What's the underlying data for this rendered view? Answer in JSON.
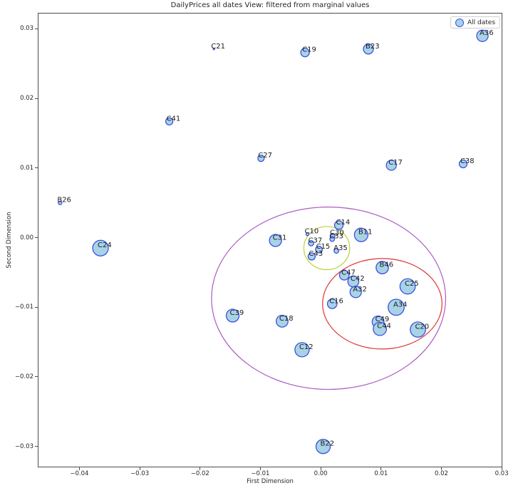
{
  "chart_data": {
    "type": "scatter",
    "title": "DailyPrices all dates View: filtered from marginal values",
    "xlabel": "First Dimension",
    "ylabel": "Second Dimension",
    "xlim": [
      -0.0469,
      0.0301
    ],
    "ylim": [
      -0.033,
      0.0323
    ],
    "grid": false,
    "x_ticks": [
      -0.04,
      -0.03,
      -0.02,
      -0.01,
      0.0,
      0.01,
      0.02,
      0.03
    ],
    "x_tick_labels": [
      "−0.04",
      "−0.03",
      "−0.02",
      "−0.01",
      "0.00",
      "0.01",
      "0.02",
      "0.03"
    ],
    "y_ticks": [
      0.03,
      0.02,
      0.01,
      0.0,
      -0.01,
      -0.02,
      -0.03
    ],
    "y_tick_labels": [
      "0.03",
      "0.02",
      "0.01",
      "0.00",
      "−0.01",
      "−0.02",
      "−0.03"
    ],
    "legend": {
      "label": "All dates",
      "position": "upper right"
    },
    "colors": {
      "marker_fill": "#A8D3E7",
      "marker_edge": "#3D50E0",
      "ellipse_purple": "#AB5BC2",
      "ellipse_red": "#DE3434",
      "ellipse_green": "#B9D232"
    },
    "points": [
      {
        "label": "A36",
        "x": 0.0268,
        "y": 0.029,
        "r": 8
      },
      {
        "label": "B23",
        "x": 0.0079,
        "y": 0.0271,
        "r": 7
      },
      {
        "label": "C21",
        "x": -0.0177,
        "y": 0.0271,
        "r": 1
      },
      {
        "label": "C19",
        "x": -0.0026,
        "y": 0.0266,
        "r": 6
      },
      {
        "label": "C41",
        "x": -0.0251,
        "y": 0.0167,
        "r": 5
      },
      {
        "label": "C27",
        "x": -0.0099,
        "y": 0.0114,
        "r": 4.5
      },
      {
        "label": "C17",
        "x": 0.0117,
        "y": 0.0104,
        "r": 7
      },
      {
        "label": "C38",
        "x": 0.0236,
        "y": 0.0106,
        "r": 5.5
      },
      {
        "label": "B26",
        "x": -0.0432,
        "y": 0.005,
        "r": 2.5
      },
      {
        "label": "C24",
        "x": -0.0365,
        "y": -0.0015,
        "r": 11
      },
      {
        "label": "C14",
        "x": 0.003,
        "y": 0.0018,
        "r": 6
      },
      {
        "label": "C10",
        "x": -0.0022,
        "y": 0.0005,
        "r": 2
      },
      {
        "label": "B11",
        "x": 0.0067,
        "y": 0.0004,
        "r": 9.5
      },
      {
        "label": "C31",
        "x": -0.0075,
        "y": -0.0004,
        "r": 8.5
      },
      {
        "label": "C30",
        "x": 0.002,
        "y": 0.0003,
        "r": 3
      },
      {
        "label": "C33",
        "x": 0.0019,
        "y": -0.0002,
        "r": 3.3
      },
      {
        "label": "C37",
        "x": -0.0016,
        "y": -0.0008,
        "r": 3.7
      },
      {
        "label": "C15",
        "x": -0.0003,
        "y": -0.0017,
        "r": 4.7
      },
      {
        "label": "A35",
        "x": 0.0026,
        "y": -0.0019,
        "r": 3.3
      },
      {
        "label": "C43",
        "x": -0.0015,
        "y": -0.0027,
        "r": 5
      },
      {
        "label": "B46",
        "x": 0.0102,
        "y": -0.0043,
        "r": 8.7
      },
      {
        "label": "C47",
        "x": 0.0039,
        "y": -0.0054,
        "r": 6.7
      },
      {
        "label": "C42",
        "x": 0.0054,
        "y": -0.0063,
        "r": 7.7
      },
      {
        "label": "A32",
        "x": 0.0058,
        "y": -0.0078,
        "r": 8
      },
      {
        "label": "C25",
        "x": 0.0144,
        "y": -0.007,
        "r": 10.7
      },
      {
        "label": "C16",
        "x": 0.0019,
        "y": -0.0095,
        "r": 6.7
      },
      {
        "label": "A34",
        "x": 0.0125,
        "y": -0.01,
        "r": 11.3
      },
      {
        "label": "C39",
        "x": -0.0146,
        "y": -0.0112,
        "r": 9
      },
      {
        "label": "C18",
        "x": -0.0064,
        "y": -0.012,
        "r": 8.3
      },
      {
        "label": "C49",
        "x": 0.0095,
        "y": -0.0121,
        "r": 8.3
      },
      {
        "label": "C44",
        "x": 0.0098,
        "y": -0.0131,
        "r": 9.3
      },
      {
        "label": "C20",
        "x": 0.0161,
        "y": -0.0132,
        "r": 10.7
      },
      {
        "label": "C12",
        "x": -0.0031,
        "y": -0.0161,
        "r": 10
      },
      {
        "label": "B22",
        "x": 0.0004,
        "y": -0.03,
        "r": 10
      }
    ],
    "ellipses": [
      {
        "name": "outer-purple",
        "cx": 0.0013,
        "cy": -0.0087,
        "rx": 0.0194,
        "ry": 0.0131,
        "color_key": "ellipse_purple"
      },
      {
        "name": "inner-red",
        "cx": 0.0102,
        "cy": -0.0095,
        "rx": 0.0099,
        "ry": 0.0065,
        "color_key": "ellipse_red"
      },
      {
        "name": "inner-green",
        "cx": 0.001,
        "cy": -0.0015,
        "rx": 0.0038,
        "ry": 0.0031,
        "color_key": "ellipse_green"
      }
    ]
  }
}
